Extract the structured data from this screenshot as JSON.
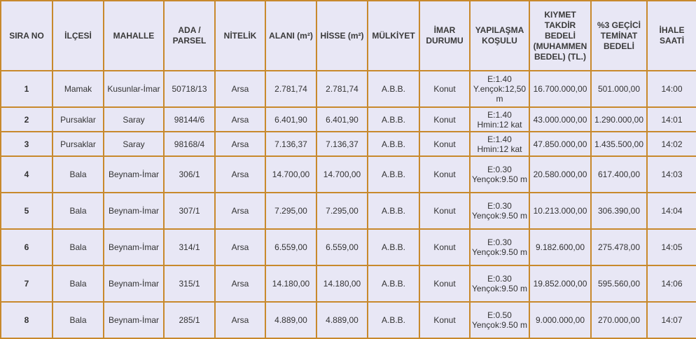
{
  "headers": {
    "sira_no": "SIRA NO",
    "ilcesi": "İLÇESİ",
    "mahalle": "MAHALLE",
    "ada_parsel": "ADA / PARSEL",
    "nitelik": "NİTELİK",
    "alani": "ALANI (m²)",
    "hisse": "HİSSE (m²)",
    "mulkiyet": "MÜLKİYET",
    "imar_durumu": "İMAR DURUMU",
    "yapilasma_kosulu": "YAPILAŞMA KOŞULU",
    "kiymet_takdir": "KIYMET TAKDİR BEDELİ (MUHAMMEN BEDEL) (TL.)",
    "gecici_teminat": "%3 GEÇİCİ TEMİNAT BEDELİ",
    "ihale_saati": "İHALE SAATİ"
  },
  "rows": [
    {
      "no": "1",
      "ilce": "Mamak",
      "mahalle": "Kusunlar-İmar",
      "ada": "50718/13",
      "nitelik": "Arsa",
      "alan": "2.781,74",
      "hisse": "2.781,74",
      "mulkiyet": "A.B.B.",
      "imar": "Konut",
      "yapilasma": "E:1.40 Y.ençok:12,50 m",
      "bedel": "16.700.000,00",
      "teminat": "501.000,00",
      "saat": "14:00"
    },
    {
      "no": "2",
      "ilce": "Pursaklar",
      "mahalle": "Saray",
      "ada": "98144/6",
      "nitelik": "Arsa",
      "alan": "6.401,90",
      "hisse": "6.401,90",
      "mulkiyet": "A.B.B.",
      "imar": "Konut",
      "yapilasma": "E:1.40 Hmin:12 kat",
      "bedel": "43.000.000,00",
      "teminat": "1.290.000,00",
      "saat": "14:01"
    },
    {
      "no": "3",
      "ilce": "Pursaklar",
      "mahalle": "Saray",
      "ada": "98168/4",
      "nitelik": "Arsa",
      "alan": "7.136,37",
      "hisse": "7.136,37",
      "mulkiyet": "A.B.B.",
      "imar": "Konut",
      "yapilasma": "E:1.40 Hmin:12 kat",
      "bedel": "47.850.000,00",
      "teminat": "1.435.500,00",
      "saat": "14:02"
    },
    {
      "no": "4",
      "ilce": "Bala",
      "mahalle": "Beynam-İmar",
      "ada": "306/1",
      "nitelik": "Arsa",
      "alan": "14.700,00",
      "hisse": "14.700,00",
      "mulkiyet": "A.B.B.",
      "imar": "Konut",
      "yapilasma": "E:0.30 Yençok:9.50 m",
      "bedel": "20.580.000,00",
      "teminat": "617.400,00",
      "saat": "14:03"
    },
    {
      "no": "5",
      "ilce": "Bala",
      "mahalle": "Beynam-İmar",
      "ada": "307/1",
      "nitelik": "Arsa",
      "alan": "7.295,00",
      "hisse": "7.295,00",
      "mulkiyet": "A.B.B.",
      "imar": "Konut",
      "yapilasma": "E:0.30 Yençok:9.50 m",
      "bedel": "10.213.000,00",
      "teminat": "306.390,00",
      "saat": "14:04"
    },
    {
      "no": "6",
      "ilce": "Bala",
      "mahalle": "Beynam-İmar",
      "ada": "314/1",
      "nitelik": "Arsa",
      "alan": "6.559,00",
      "hisse": "6.559,00",
      "mulkiyet": "A.B.B.",
      "imar": "Konut",
      "yapilasma": "E:0.30 Yençok:9.50 m",
      "bedel": "9.182.600,00",
      "teminat": "275.478,00",
      "saat": "14:05"
    },
    {
      "no": "7",
      "ilce": "Bala",
      "mahalle": "Beynam-İmar",
      "ada": "315/1",
      "nitelik": "Arsa",
      "alan": "14.180,00",
      "hisse": "14.180,00",
      "mulkiyet": "A.B.B.",
      "imar": "Konut",
      "yapilasma": "E:0.30 Yençok:9.50 m",
      "bedel": "19.852.000,00",
      "teminat": "595.560,00",
      "saat": "14:06"
    },
    {
      "no": "8",
      "ilce": "Bala",
      "mahalle": "Beynam-İmar",
      "ada": "285/1",
      "nitelik": "Arsa",
      "alan": "4.889,00",
      "hisse": "4.889,00",
      "mulkiyet": "A.B.B.",
      "imar": "Konut",
      "yapilasma": "E:0.50 Yençok:9.50 m",
      "bedel": "9.000.000,00",
      "teminat": "270.000,00",
      "saat": "14:07"
    }
  ]
}
